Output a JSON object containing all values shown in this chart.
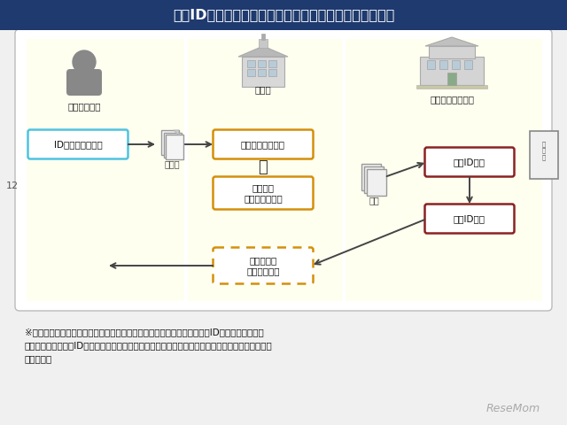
{
  "title": "共通IDの申込み及び発行の方法（高校等在学者）（案）",
  "title_bg": "#1e3a6e",
  "title_color": "#ffffff",
  "title_fontsize": 11.5,
  "bg_color": "#f0f0f0",
  "outer_bg": "#ffffff",
  "inner_bg": "#fdfde8",
  "label_student": "高校等在学者",
  "label_school": "高校等",
  "label_center": "大学入試センター",
  "box1_text": "ID発行申込書記入",
  "box1_color": "#4fc3e0",
  "box2_text": "申込み取りまとめ",
  "box2_color": "#d4900a",
  "box3_text": "添付書類\n（在学証明書）",
  "box3_color": "#d4900a",
  "box4_text": "共通ID発行",
  "box4_color": "#8b2222",
  "box5_text": "共通ID通知",
  "box5_color": "#8b2222",
  "box6_text": "学校経由で\n申込者に配付",
  "box6_color": "#d4900a",
  "note_text": "※　具体的な手順等については、今後、大学入試センターにおいて「共通ID発行申込案内（仮\n　称）」及び「共通ID発行取りまとめ要領（仮称）」等の手引き等を作成し、高校等にお知らせす\n　る予定。",
  "note_fontsize": 7.5,
  "arrow_color": "#444444",
  "label_moushikomi": "申込書",
  "label_moushikomi2": "申込",
  "plus_text": "＋",
  "page_num": "12",
  "resemom": "ReseMom"
}
